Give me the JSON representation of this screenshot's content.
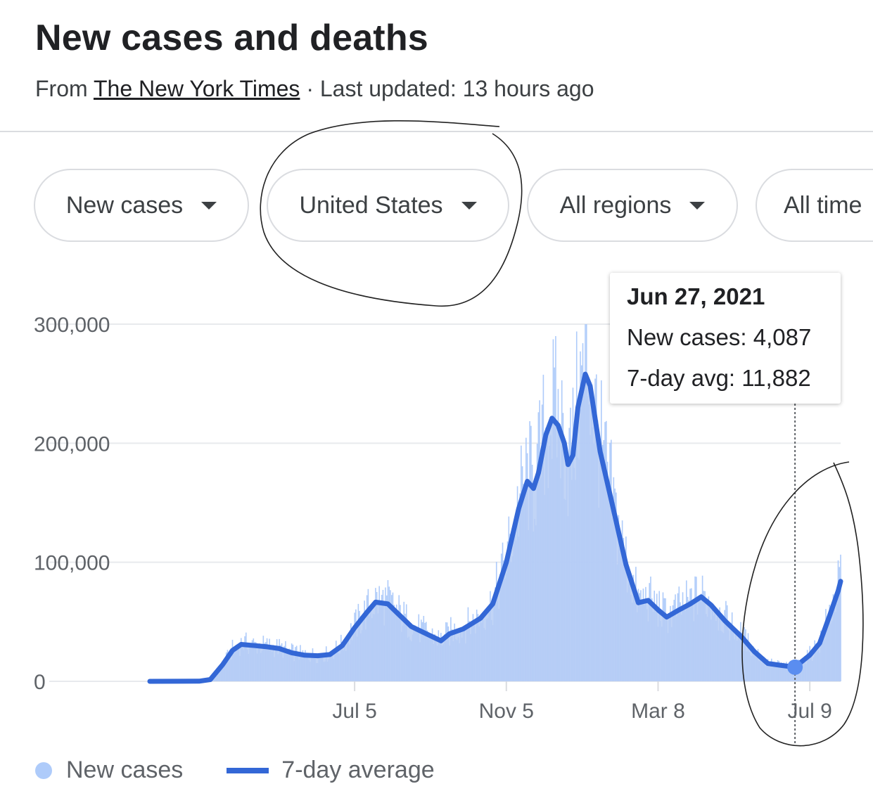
{
  "header": {
    "title": "New cases and deaths",
    "source_prefix": "From ",
    "source_link": "The New York Times",
    "updated": " · Last updated: 13 hours ago"
  },
  "filters": {
    "metric": "New cases",
    "location": "United States",
    "regions": "All regions",
    "time": "All time"
  },
  "tooltip": {
    "date": "Jun 27, 2021",
    "new_cases": "New cases: 4,087",
    "avg": "7-day avg: 11,882"
  },
  "legend": {
    "bars": "New cases",
    "line": "7-day average"
  },
  "colors": {
    "bars": "#aecbfa",
    "area": "#b6cdf4",
    "line": "#3367d6",
    "grid": "#e8eaed"
  },
  "chart_data": {
    "type": "bar",
    "title": "New cases and deaths",
    "ylim": [
      0,
      300000
    ],
    "yticks": [
      0,
      100000,
      200000,
      300000
    ],
    "ytick_labels": [
      "0",
      "100,000",
      "200,000",
      "300,000"
    ],
    "xtick_labels": [
      "Jul 5",
      "Nov 5",
      "Mar 8",
      "Jul 9"
    ],
    "x_range": [
      "2020-01-21",
      "2021-08-03"
    ],
    "x_ticks": [
      "2020-07-05",
      "2020-11-05",
      "2021-03-08",
      "2021-07-09"
    ],
    "highlight": {
      "date": "2021-06-27",
      "new_cases": 4087,
      "avg": 11882
    },
    "series": [
      {
        "name": "7-day average",
        "points": [
          [
            "2020-01-21",
            0
          ],
          [
            "2020-03-01",
            100
          ],
          [
            "2020-03-10",
            1500
          ],
          [
            "2020-03-20",
            14000
          ],
          [
            "2020-03-28",
            26000
          ],
          [
            "2020-04-04",
            31000
          ],
          [
            "2020-04-15",
            30000
          ],
          [
            "2020-04-25",
            29000
          ],
          [
            "2020-05-05",
            27500
          ],
          [
            "2020-05-15",
            24000
          ],
          [
            "2020-05-25",
            22000
          ],
          [
            "2020-06-05",
            21500
          ],
          [
            "2020-06-15",
            22500
          ],
          [
            "2020-06-25",
            30000
          ],
          [
            "2020-07-05",
            45000
          ],
          [
            "2020-07-15",
            58000
          ],
          [
            "2020-07-22",
            66500
          ],
          [
            "2020-08-01",
            65000
          ],
          [
            "2020-08-10",
            56000
          ],
          [
            "2020-08-20",
            46000
          ],
          [
            "2020-08-30",
            41000
          ],
          [
            "2020-09-08",
            36500
          ],
          [
            "2020-09-13",
            34000
          ],
          [
            "2020-09-20",
            40000
          ],
          [
            "2020-10-01",
            44000
          ],
          [
            "2020-10-15",
            53000
          ],
          [
            "2020-10-25",
            65000
          ],
          [
            "2020-11-05",
            100000
          ],
          [
            "2020-11-15",
            145000
          ],
          [
            "2020-11-22",
            168000
          ],
          [
            "2020-11-27",
            162000
          ],
          [
            "2020-12-01",
            175000
          ],
          [
            "2020-12-07",
            207000
          ],
          [
            "2020-12-12",
            221000
          ],
          [
            "2020-12-17",
            215000
          ],
          [
            "2020-12-22",
            200000
          ],
          [
            "2020-12-25",
            182000
          ],
          [
            "2020-12-29",
            190000
          ],
          [
            "2021-01-02",
            230000
          ],
          [
            "2021-01-08",
            258000
          ],
          [
            "2021-01-12",
            248000
          ],
          [
            "2021-01-20",
            193000
          ],
          [
            "2021-01-30",
            148000
          ],
          [
            "2021-02-10",
            98000
          ],
          [
            "2021-02-20",
            66000
          ],
          [
            "2021-02-28",
            68000
          ],
          [
            "2021-03-08",
            60000
          ],
          [
            "2021-03-15",
            54000
          ],
          [
            "2021-03-25",
            60000
          ],
          [
            "2021-04-03",
            65000
          ],
          [
            "2021-04-12",
            71000
          ],
          [
            "2021-04-20",
            64000
          ],
          [
            "2021-05-01",
            51000
          ],
          [
            "2021-05-15",
            37000
          ],
          [
            "2021-05-25",
            25000
          ],
          [
            "2021-06-05",
            15000
          ],
          [
            "2021-06-15",
            13500
          ],
          [
            "2021-06-27",
            11882
          ],
          [
            "2021-07-03",
            17000
          ],
          [
            "2021-07-09",
            22000
          ],
          [
            "2021-07-17",
            32000
          ],
          [
            "2021-07-25",
            55000
          ],
          [
            "2021-08-01",
            76000
          ],
          [
            "2021-08-03",
            84000
          ]
        ]
      }
    ]
  }
}
